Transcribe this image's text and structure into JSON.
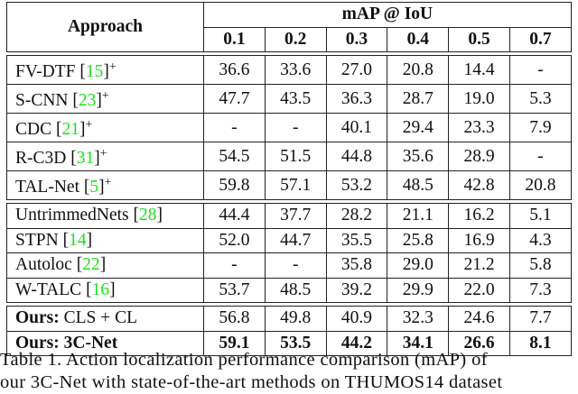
{
  "table": {
    "approach_header": "Approach",
    "group_header": "mAP @ IoU",
    "iou_thresholds": [
      "0.1",
      "0.2",
      "0.3",
      "0.4",
      "0.5",
      "0.7"
    ],
    "sections": [
      [
        {
          "name": "FV-DTF",
          "ref": "15",
          "sup": "+",
          "values": [
            "36.6",
            "33.6",
            "27.0",
            "20.8",
            "14.4",
            "-"
          ]
        },
        {
          "name": "S-CNN",
          "ref": "23",
          "sup": "+",
          "values": [
            "47.7",
            "43.5",
            "36.3",
            "28.7",
            "19.0",
            "5.3"
          ]
        },
        {
          "name": "CDC",
          "ref": "21",
          "sup": "+",
          "values": [
            "-",
            "-",
            "40.1",
            "29.4",
            "23.3",
            "7.9"
          ]
        },
        {
          "name": "R-C3D",
          "ref": "31",
          "sup": "+",
          "values": [
            "54.5",
            "51.5",
            "44.8",
            "35.6",
            "28.9",
            "-"
          ]
        },
        {
          "name": "TAL-Net",
          "ref": "5",
          "sup": "+",
          "values": [
            "59.8",
            "57.1",
            "53.2",
            "48.5",
            "42.8",
            "20.8"
          ]
        }
      ],
      [
        {
          "name": "UntrimmedNets",
          "ref": "28",
          "values": [
            "44.4",
            "37.7",
            "28.2",
            "21.1",
            "16.2",
            "5.1"
          ]
        },
        {
          "name": "STPN",
          "ref": "14",
          "values": [
            "52.0",
            "44.7",
            "35.5",
            "25.8",
            "16.9",
            "4.3"
          ]
        },
        {
          "name": "Autoloc",
          "ref": "22",
          "values": [
            "-",
            "-",
            "35.8",
            "29.0",
            "21.2",
            "5.8"
          ]
        },
        {
          "name": "W-TALC",
          "ref": "16",
          "values": [
            "53.7",
            "48.5",
            "39.2",
            "29.9",
            "22.0",
            "7.3"
          ]
        }
      ],
      [
        {
          "prefix": "Ours:",
          "name": "CLS + CL",
          "values": [
            "56.8",
            "49.8",
            "40.9",
            "32.3",
            "24.6",
            "7.7"
          ]
        },
        {
          "prefix": "Ours:",
          "name": "3C-Net",
          "bold": true,
          "values": [
            "59.1",
            "53.5",
            "44.2",
            "34.1",
            "26.6",
            "8.1"
          ]
        }
      ]
    ]
  },
  "caption": {
    "line1": "Table 1. Action localization performance comparison (mAP) of",
    "line2": "our 3C-Net with state-of-the-art methods on THUMOS14 dataset"
  },
  "colors": {
    "citation": "#1ee01e",
    "text": "#111111"
  }
}
